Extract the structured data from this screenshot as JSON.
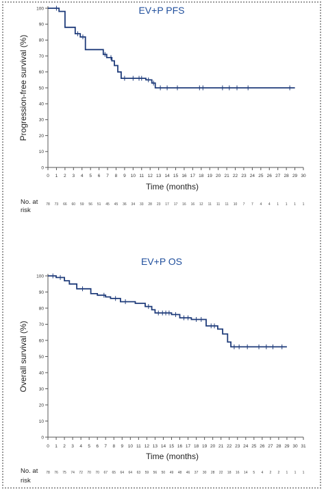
{
  "colors": {
    "curve": "#1e3b7a",
    "title": "#1f4e9c",
    "border": "#9a9a9a"
  },
  "chart_data": [
    {
      "type": "line",
      "title": "EV+P PFS",
      "xlabel": "Time (months)",
      "ylabel": "Progression-free survival (%)",
      "xlim": [
        0,
        30
      ],
      "ylim": [
        0,
        100
      ],
      "x_ticks": [
        0,
        1,
        2,
        3,
        4,
        5,
        6,
        7,
        8,
        9,
        10,
        11,
        12,
        13,
        14,
        15,
        16,
        17,
        18,
        19,
        20,
        21,
        22,
        23,
        24,
        25,
        26,
        27,
        28,
        29,
        30
      ],
      "y_ticks": [
        0,
        10,
        20,
        30,
        40,
        50,
        60,
        70,
        80,
        90,
        100
      ],
      "risk_label_1": "No. at",
      "risk_label_2": "risk",
      "at_risk": [
        "78",
        "73",
        "66",
        "60",
        "59",
        "56",
        "51",
        "45",
        "45",
        "36",
        "34",
        "33",
        "28",
        "23",
        "17",
        "17",
        "16",
        "16",
        "12",
        "11",
        "11",
        "11",
        "10",
        "7",
        "7",
        "4",
        "4",
        "1",
        "1",
        "1",
        "1"
      ],
      "series": [
        {
          "x": [
            0,
            1.3,
            1.3,
            2,
            2,
            3.2,
            3.2,
            3.8,
            3.8,
            4.4,
            4.4,
            6.5,
            6.5,
            6.9,
            6.9,
            7.5,
            7.5,
            7.8,
            7.8,
            8.2,
            8.2,
            8.6,
            8.6,
            9.2,
            9.2,
            11.5,
            11.5,
            12.2,
            12.2,
            12.6,
            12.6,
            29
          ],
          "y": [
            100,
            100,
            98,
            98,
            88,
            88,
            84,
            84,
            82,
            82,
            74,
            74,
            71,
            71,
            69,
            69,
            67,
            67,
            64,
            64,
            60,
            60,
            56,
            56,
            56,
            56,
            55,
            55,
            53,
            53,
            50,
            50
          ],
          "censored_x": [
            1.0,
            3.5,
            4.1,
            6.7,
            7.4,
            9.0,
            10.0,
            10.7,
            11.0,
            11.8,
            12.4,
            13.2,
            14.0,
            15.2,
            17.8,
            18.2,
            20.5,
            21.3,
            22.2,
            23.5,
            28.4
          ]
        }
      ]
    },
    {
      "type": "line",
      "title": "EV+P OS",
      "xlabel": "Time (months)",
      "ylabel": "Overall survival (%)",
      "xlim": [
        0,
        31
      ],
      "ylim": [
        0,
        100
      ],
      "x_ticks": [
        0,
        1,
        2,
        3,
        4,
        5,
        6,
        7,
        8,
        9,
        10,
        11,
        12,
        13,
        14,
        15,
        16,
        17,
        18,
        19,
        20,
        21,
        22,
        23,
        24,
        25,
        26,
        27,
        28,
        29,
        30,
        31
      ],
      "y_ticks": [
        0,
        10,
        20,
        30,
        40,
        50,
        60,
        70,
        80,
        90,
        100
      ],
      "risk_label_1": "No. at",
      "risk_label_2": "risk",
      "at_risk": [
        "78",
        "76",
        "75",
        "74",
        "72",
        "70",
        "70",
        "67",
        "65",
        "64",
        "64",
        "63",
        "59",
        "56",
        "50",
        "49",
        "48",
        "46",
        "37",
        "30",
        "28",
        "22",
        "18",
        "16",
        "14",
        "5",
        "4",
        "2",
        "2",
        "1",
        "1",
        "1"
      ],
      "series": [
        {
          "x": [
            0,
            1,
            1,
            2,
            2,
            2.6,
            2.6,
            3.5,
            3.5,
            5.2,
            5.2,
            6,
            6,
            7,
            7,
            7.6,
            7.6,
            8.8,
            8.8,
            10.6,
            10.6,
            11.8,
            11.8,
            12.6,
            12.6,
            13,
            13,
            15,
            15,
            16,
            16,
            17.4,
            17.4,
            19.2,
            19.2,
            20.6,
            20.6,
            21.2,
            21.2,
            21.8,
            21.8,
            22.2,
            22.2,
            29
          ],
          "y": [
            100,
            100,
            99,
            99,
            97,
            97,
            95,
            95,
            92,
            92,
            89,
            89,
            88,
            88,
            87,
            87,
            86,
            86,
            84,
            84,
            83,
            83,
            81,
            81,
            79,
            79,
            77,
            77,
            76,
            76,
            74,
            74,
            73,
            73,
            69,
            69,
            67,
            67,
            64,
            64,
            59,
            59,
            56,
            56
          ],
          "censored_x": [
            0.6,
            1.5,
            4.2,
            6.8,
            8.2,
            9.4,
            12.2,
            13.4,
            13.9,
            14.3,
            14.7,
            15.5,
            16.5,
            17.0,
            18.0,
            18.6,
            19.8,
            20.2,
            22.6,
            23.2,
            24.2,
            25.6,
            26.5,
            27.3,
            28.4
          ]
        }
      ]
    }
  ]
}
